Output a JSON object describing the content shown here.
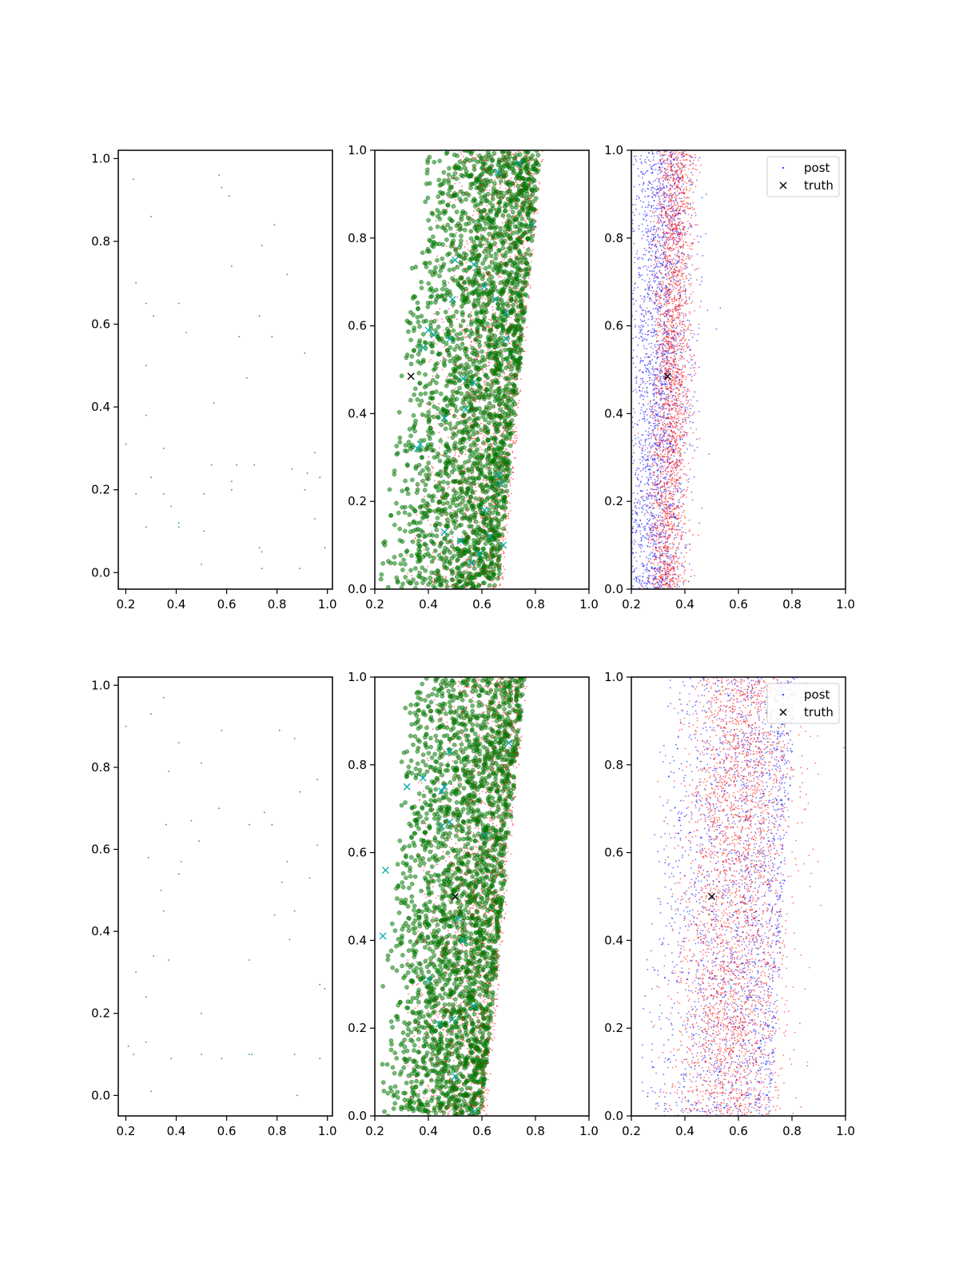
{
  "figure": {
    "title": ""
  },
  "colors": {
    "green": "#008000",
    "cyan": "#00aaaa",
    "red": "#ff0000",
    "blue": "#0000ff",
    "black": "#000000"
  },
  "legend_entries": [
    "post",
    "truth"
  ],
  "chart_data": [
    {
      "type": "scatter",
      "xlim": [
        0.17,
        1.02
      ],
      "ylim": [
        -0.04,
        1.02
      ],
      "xticks": [
        "0.2",
        "0.4",
        "0.6",
        "0.8",
        "1.0"
      ],
      "yticks": [
        "0.0",
        "0.2",
        "0.4",
        "0.6",
        "0.8",
        "1.0"
      ],
      "series": [
        {
          "style": "dot-green-small",
          "points": [
            [
              0.23,
              0.95
            ],
            [
              0.57,
              0.96
            ],
            [
              0.58,
              0.93
            ],
            [
              0.61,
              0.91
            ],
            [
              0.3,
              0.86
            ],
            [
              0.79,
              0.84
            ],
            [
              0.74,
              0.79
            ],
            [
              0.84,
              0.72
            ],
            [
              0.24,
              0.7
            ],
            [
              0.62,
              0.74
            ],
            [
              0.28,
              0.65
            ],
            [
              0.31,
              0.62
            ],
            [
              0.41,
              0.65
            ],
            [
              0.44,
              0.58
            ],
            [
              0.73,
              0.62
            ],
            [
              0.78,
              0.57
            ],
            [
              0.65,
              0.57
            ],
            [
              0.91,
              0.53
            ],
            [
              0.28,
              0.5
            ],
            [
              0.68,
              0.47
            ],
            [
              0.55,
              0.41
            ],
            [
              0.28,
              0.38
            ],
            [
              0.2,
              0.31
            ],
            [
              0.35,
              0.3
            ],
            [
              0.54,
              0.26
            ],
            [
              0.64,
              0.26
            ],
            [
              0.71,
              0.26
            ],
            [
              0.86,
              0.25
            ],
            [
              0.95,
              0.29
            ],
            [
              0.92,
              0.24
            ],
            [
              0.97,
              0.23
            ],
            [
              0.3,
              0.23
            ],
            [
              0.62,
              0.22
            ],
            [
              0.62,
              0.2
            ],
            [
              0.91,
              0.2
            ],
            [
              0.51,
              0.19
            ],
            [
              0.24,
              0.19
            ],
            [
              0.35,
              0.19
            ],
            [
              0.38,
              0.16
            ],
            [
              0.41,
              0.12
            ],
            [
              0.41,
              0.11
            ],
            [
              0.28,
              0.11
            ],
            [
              0.51,
              0.1
            ],
            [
              0.95,
              0.13
            ],
            [
              0.73,
              0.06
            ],
            [
              0.74,
              0.05
            ],
            [
              0.99,
              0.06
            ],
            [
              0.5,
              0.02
            ],
            [
              0.89,
              0.01
            ],
            [
              0.74,
              0.01
            ]
          ]
        }
      ]
    },
    {
      "type": "scatter",
      "xlim": [
        0.2,
        1.0
      ],
      "ylim": [
        0.0,
        1.0
      ],
      "xticks": [
        "0.2",
        "0.4",
        "0.6",
        "0.8",
        "1.0"
      ],
      "yticks": [
        "0.0",
        "0.2",
        "0.4",
        "0.6",
        "0.8",
        "1.0"
      ],
      "series": [
        {
          "style": "cloud-green",
          "dist": "ramp",
          "n": 2600,
          "y": [
            0,
            1
          ],
          "left": [
            0.2,
            0.38
          ],
          "right": [
            0.66,
            0.82
          ]
        },
        {
          "style": "cloud-red",
          "dist": "ramp",
          "n": 1600,
          "y": [
            0,
            1
          ],
          "left": [
            0.3,
            0.45
          ],
          "right": [
            0.68,
            0.83
          ]
        },
        {
          "style": "x-cyan",
          "points": [
            [
              0.74,
              0.97
            ],
            [
              0.66,
              0.95
            ],
            [
              0.61,
              0.69
            ],
            [
              0.65,
              0.66
            ],
            [
              0.69,
              0.63
            ],
            [
              0.49,
              0.66
            ],
            [
              0.4,
              0.59
            ],
            [
              0.42,
              0.58
            ],
            [
              0.38,
              0.55
            ],
            [
              0.48,
              0.57
            ],
            [
              0.69,
              0.57
            ],
            [
              0.53,
              0.48
            ],
            [
              0.57,
              0.47
            ],
            [
              0.54,
              0.41
            ],
            [
              0.46,
              0.39
            ],
            [
              0.37,
              0.33
            ],
            [
              0.36,
              0.32
            ],
            [
              0.66,
              0.26
            ],
            [
              0.67,
              0.24
            ],
            [
              0.61,
              0.18
            ],
            [
              0.46,
              0.13
            ],
            [
              0.52,
              0.11
            ],
            [
              0.59,
              0.08
            ],
            [
              0.68,
              0.1
            ],
            [
              0.63,
              0.12
            ],
            [
              0.56,
              0.06
            ],
            [
              0.79,
              0.83
            ],
            [
              0.57,
              0.74
            ],
            [
              0.5,
              0.75
            ]
          ]
        },
        {
          "style": "x-black",
          "points": [
            [
              0.335,
              0.485
            ]
          ]
        }
      ]
    },
    {
      "type": "scatter",
      "xlim": [
        0.2,
        1.0
      ],
      "ylim": [
        0.0,
        1.0
      ],
      "xticks": [
        "0.2",
        "0.4",
        "0.6",
        "0.8",
        "1.0"
      ],
      "yticks": [
        "0.0",
        "0.2",
        "0.4",
        "0.6",
        "0.8",
        "1.0"
      ],
      "legend": {
        "position": "upper right",
        "entries": [
          "post",
          "truth"
        ]
      },
      "series": [
        {
          "name": "post",
          "style": "cloud-blue",
          "dist": "band",
          "n": 2400,
          "y": [
            0,
            1
          ],
          "center": [
            0.28,
            0.32
          ],
          "spread": 0.06
        },
        {
          "style": "cloud-red",
          "dist": "band",
          "n": 2400,
          "y": [
            0,
            1
          ],
          "center": [
            0.33,
            0.37
          ],
          "spread": 0.035
        },
        {
          "name": "truth",
          "style": "x-black",
          "points": [
            [
              0.335,
              0.485
            ]
          ]
        }
      ]
    },
    {
      "type": "scatter",
      "xlim": [
        0.17,
        1.02
      ],
      "ylim": [
        -0.05,
        1.02
      ],
      "xticks": [
        "0.2",
        "0.4",
        "0.6",
        "0.8",
        "1.0"
      ],
      "yticks": [
        "0.0",
        "0.2",
        "0.4",
        "0.6",
        "0.8",
        "1.0"
      ],
      "series": [
        {
          "style": "dot-green-small",
          "points": [
            [
              0.2,
              0.9
            ],
            [
              0.35,
              0.97
            ],
            [
              0.3,
              0.93
            ],
            [
              0.58,
              0.89
            ],
            [
              0.81,
              0.89
            ],
            [
              0.87,
              0.87
            ],
            [
              0.41,
              0.86
            ],
            [
              0.5,
              0.81
            ],
            [
              0.37,
              0.79
            ],
            [
              0.96,
              0.77
            ],
            [
              0.89,
              0.74
            ],
            [
              0.57,
              0.7
            ],
            [
              0.75,
              0.69
            ],
            [
              0.46,
              0.67
            ],
            [
              0.69,
              0.66
            ],
            [
              0.36,
              0.66
            ],
            [
              0.78,
              0.66
            ],
            [
              0.49,
              0.62
            ],
            [
              0.96,
              0.61
            ],
            [
              0.29,
              0.58
            ],
            [
              0.42,
              0.57
            ],
            [
              0.84,
              0.57
            ],
            [
              0.41,
              0.54
            ],
            [
              0.82,
              0.52
            ],
            [
              0.93,
              0.53
            ],
            [
              0.34,
              0.5
            ],
            [
              0.35,
              0.45
            ],
            [
              0.79,
              0.44
            ],
            [
              0.87,
              0.45
            ],
            [
              0.85,
              0.38
            ],
            [
              0.31,
              0.34
            ],
            [
              0.37,
              0.33
            ],
            [
              0.69,
              0.33
            ],
            [
              0.24,
              0.3
            ],
            [
              0.97,
              0.27
            ],
            [
              0.99,
              0.26
            ],
            [
              0.28,
              0.24
            ],
            [
              0.5,
              0.2
            ],
            [
              0.21,
              0.12
            ],
            [
              0.23,
              0.1
            ],
            [
              0.28,
              0.13
            ],
            [
              0.5,
              0.1
            ],
            [
              0.58,
              0.09
            ],
            [
              0.38,
              0.09
            ],
            [
              0.69,
              0.1
            ],
            [
              0.7,
              0.1
            ],
            [
              0.87,
              0.1
            ],
            [
              0.97,
              0.09
            ],
            [
              0.3,
              0.01
            ],
            [
              0.88,
              0.0
            ]
          ]
        }
      ]
    },
    {
      "type": "scatter",
      "xlim": [
        0.2,
        1.0
      ],
      "ylim": [
        0.0,
        1.0
      ],
      "xticks": [
        "0.2",
        "0.4",
        "0.6",
        "0.8",
        "1.0"
      ],
      "yticks": [
        "0.0",
        "0.2",
        "0.4",
        "0.6",
        "0.8",
        "1.0"
      ],
      "series": [
        {
          "style": "cloud-green",
          "dist": "ramp",
          "n": 2600,
          "y": [
            0,
            1
          ],
          "left": [
            0.2,
            0.3
          ],
          "right": [
            0.6,
            0.76
          ]
        },
        {
          "style": "cloud-red",
          "dist": "ramp",
          "n": 1600,
          "y": [
            0,
            1
          ],
          "left": [
            0.28,
            0.38
          ],
          "right": [
            0.62,
            0.77
          ]
        },
        {
          "style": "x-cyan",
          "points": [
            [
              0.24,
              0.56
            ],
            [
              0.23,
              0.41
            ],
            [
              0.32,
              0.75
            ],
            [
              0.38,
              0.77
            ],
            [
              0.45,
              0.74
            ],
            [
              0.45,
              0.66
            ],
            [
              0.48,
              0.67
            ],
            [
              0.7,
              0.85
            ],
            [
              0.61,
              0.64
            ],
            [
              0.51,
              0.45
            ],
            [
              0.53,
              0.4
            ],
            [
              0.4,
              0.31
            ],
            [
              0.57,
              0.25
            ],
            [
              0.49,
              0.22
            ],
            [
              0.44,
              0.21
            ],
            [
              0.5,
              0.09
            ],
            [
              0.57,
              0.01
            ],
            [
              0.48,
              0.83
            ],
            [
              0.46,
              0.75
            ]
          ]
        },
        {
          "style": "x-black",
          "points": [
            [
              0.5,
              0.5
            ]
          ]
        }
      ]
    },
    {
      "type": "scatter",
      "xlim": [
        0.2,
        1.0
      ],
      "ylim": [
        0.0,
        1.0
      ],
      "xticks": [
        "0.2",
        "0.4",
        "0.6",
        "0.8",
        "1.0"
      ],
      "yticks": [
        "0.0",
        "0.2",
        "0.4",
        "0.6",
        "0.8",
        "1.0"
      ],
      "legend": {
        "position": "upper right",
        "entries": [
          "post",
          "truth"
        ]
      },
      "series": [
        {
          "name": "post",
          "style": "cloud-blue",
          "dist": "ramp",
          "n": 2200,
          "y": [
            0,
            1
          ],
          "left": [
            0.2,
            0.32
          ],
          "right": [
            0.72,
            0.82
          ]
        },
        {
          "style": "cloud-red",
          "dist": "band",
          "n": 3000,
          "y": [
            0,
            1
          ],
          "center": [
            0.56,
            0.62
          ],
          "spread": 0.1
        },
        {
          "name": "truth",
          "style": "x-black",
          "points": [
            [
              0.5,
              0.5
            ]
          ]
        }
      ]
    }
  ]
}
